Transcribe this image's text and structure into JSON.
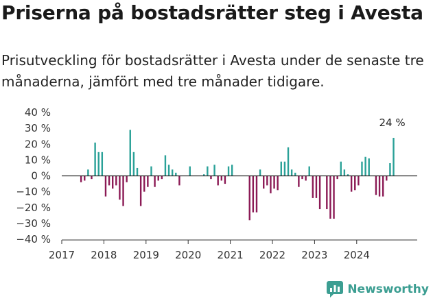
{
  "title": "Priserna på bostadsrätter steg i Avesta",
  "subtitle": "Prisutveckling för bostadsrätter i Avesta under de senaste tre månaderna, jämfört med tre månader tidigare.",
  "brand": "Newsworthy",
  "colors": {
    "positive": "#2aa198",
    "negative": "#8b1a55",
    "axis": "#333333",
    "brand": "#3c9e92"
  },
  "chart_data": {
    "type": "bar",
    "y_unit": "%",
    "ylim": [
      -40,
      40
    ],
    "yticks": [
      -40,
      -30,
      -20,
      -10,
      0,
      10,
      20,
      30,
      40
    ],
    "ytick_labels": [
      "−40 %",
      "−30 %",
      "−20 %",
      "−10 %",
      "0 %",
      "10 %",
      "20 %",
      "30 %",
      "40 %"
    ],
    "xticks": [
      "2017",
      "2018",
      "2019",
      "2020",
      "2021",
      "2022",
      "2023",
      "2024"
    ],
    "grid": false,
    "annotation": {
      "text": "24 %",
      "index": 94
    },
    "series": [
      {
        "start": "2017-01",
        "frequency": "monthly",
        "values": [
          null,
          null,
          null,
          null,
          null,
          -4,
          -3,
          4,
          -2,
          21,
          15,
          15,
          -13,
          -6,
          -8,
          -6,
          -15,
          -19,
          -4,
          29,
          15,
          5,
          -19,
          -10,
          -7,
          6,
          -7,
          -3,
          -2,
          13,
          7,
          4,
          2,
          -6,
          null,
          null,
          6,
          null,
          null,
          null,
          1,
          6,
          -2,
          7,
          -6,
          -3,
          -5,
          6,
          7,
          null,
          null,
          null,
          null,
          -28,
          -23,
          -23,
          4,
          -8,
          -6,
          -11,
          -8,
          -9,
          9,
          9,
          18,
          4,
          2,
          -7,
          -2,
          -3,
          6,
          -14,
          -14,
          -21,
          null,
          -21,
          -27,
          -27,
          -2,
          9,
          4,
          1,
          -10,
          -9,
          -6,
          9,
          12,
          11,
          null,
          -12,
          -13,
          -13,
          -3,
          8,
          24
        ]
      }
    ]
  }
}
